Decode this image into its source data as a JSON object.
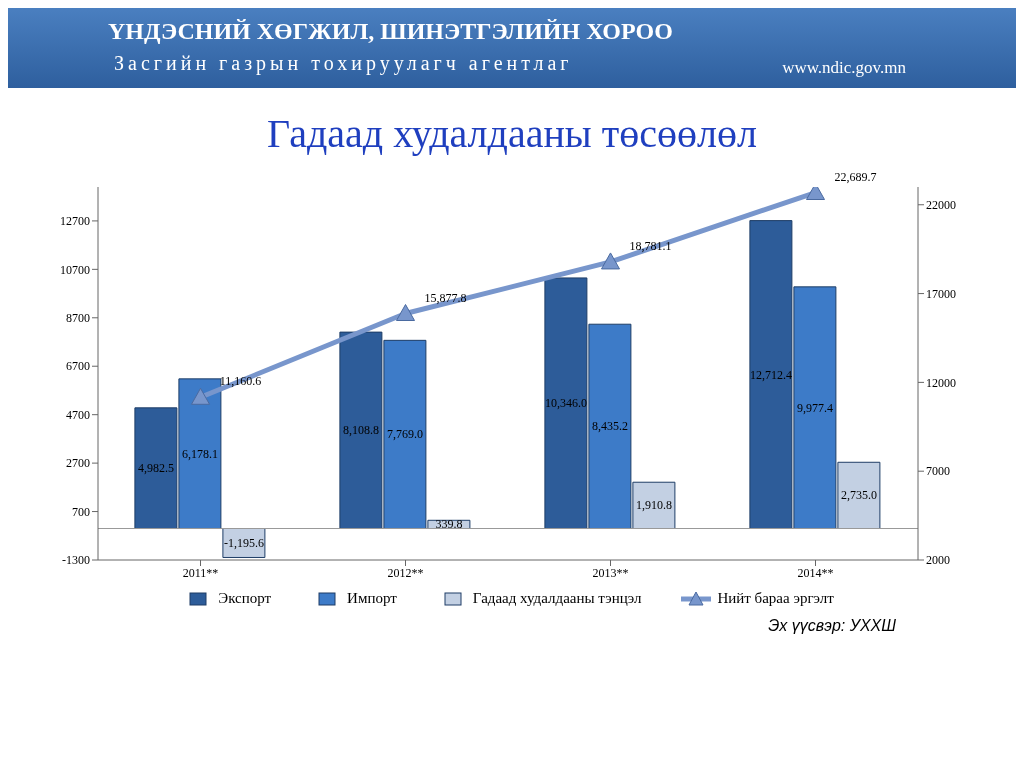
{
  "chart_data": {
    "type": "bar",
    "title": "Гадаад худалдааны төсөөлөл",
    "annotations": [
      "ҮНДЭСНИЙ ХӨГЖИЛ, ШИНЭТГЭЛИЙН ХОРОО",
      "Засгийн газрын тохируулагч агентлаг",
      "www.ndic.gov.mn",
      "Эх үүсвэр: УХХШ"
    ],
    "categories": [
      "2011**",
      "2012**",
      "2013**",
      "2014**"
    ],
    "series": [
      {
        "name": "Экспорт",
        "color": "#2d5c99",
        "values": [
          4982.5,
          8108.8,
          10346.0,
          12712.4
        ],
        "value_labels": [
          "4,982.5",
          "8,108.8",
          "10,346.0",
          "12,712.4"
        ]
      },
      {
        "name": "Импорт",
        "color": "#3d7bc8",
        "values": [
          6178.1,
          7769.0,
          8435.2,
          9977.4
        ],
        "value_labels": [
          "6,178.1",
          "7,769.0",
          "8,435.2",
          "9,977.4"
        ]
      },
      {
        "name": "Гадаад худалдааны тэнцэл",
        "color": "#c3d0e3",
        "values": [
          -1195.6,
          339.8,
          1910.8,
          2735.0
        ],
        "value_labels": [
          "-1,195.6",
          "339.8",
          "1,910.8",
          "2,735.0"
        ]
      },
      {
        "name": "Нийт бараа эргэлт",
        "type": "line",
        "axis": "y2",
        "color": "#7896cc",
        "marker": "triangle",
        "values": [
          11160.6,
          15877.8,
          18781.1,
          22689.7
        ],
        "value_labels": [
          "11,160.6",
          "15,877.8",
          "18,781.1",
          "22,689.7"
        ]
      }
    ],
    "ylim": [
      -1300,
      14100
    ],
    "yticks": [
      -1300,
      700,
      2700,
      4700,
      6700,
      8700,
      10700,
      12700
    ],
    "y2lim": [
      2000,
      23000
    ],
    "y2ticks": [
      2000,
      7000,
      12000,
      17000,
      22000
    ],
    "legend": "bottom"
  }
}
